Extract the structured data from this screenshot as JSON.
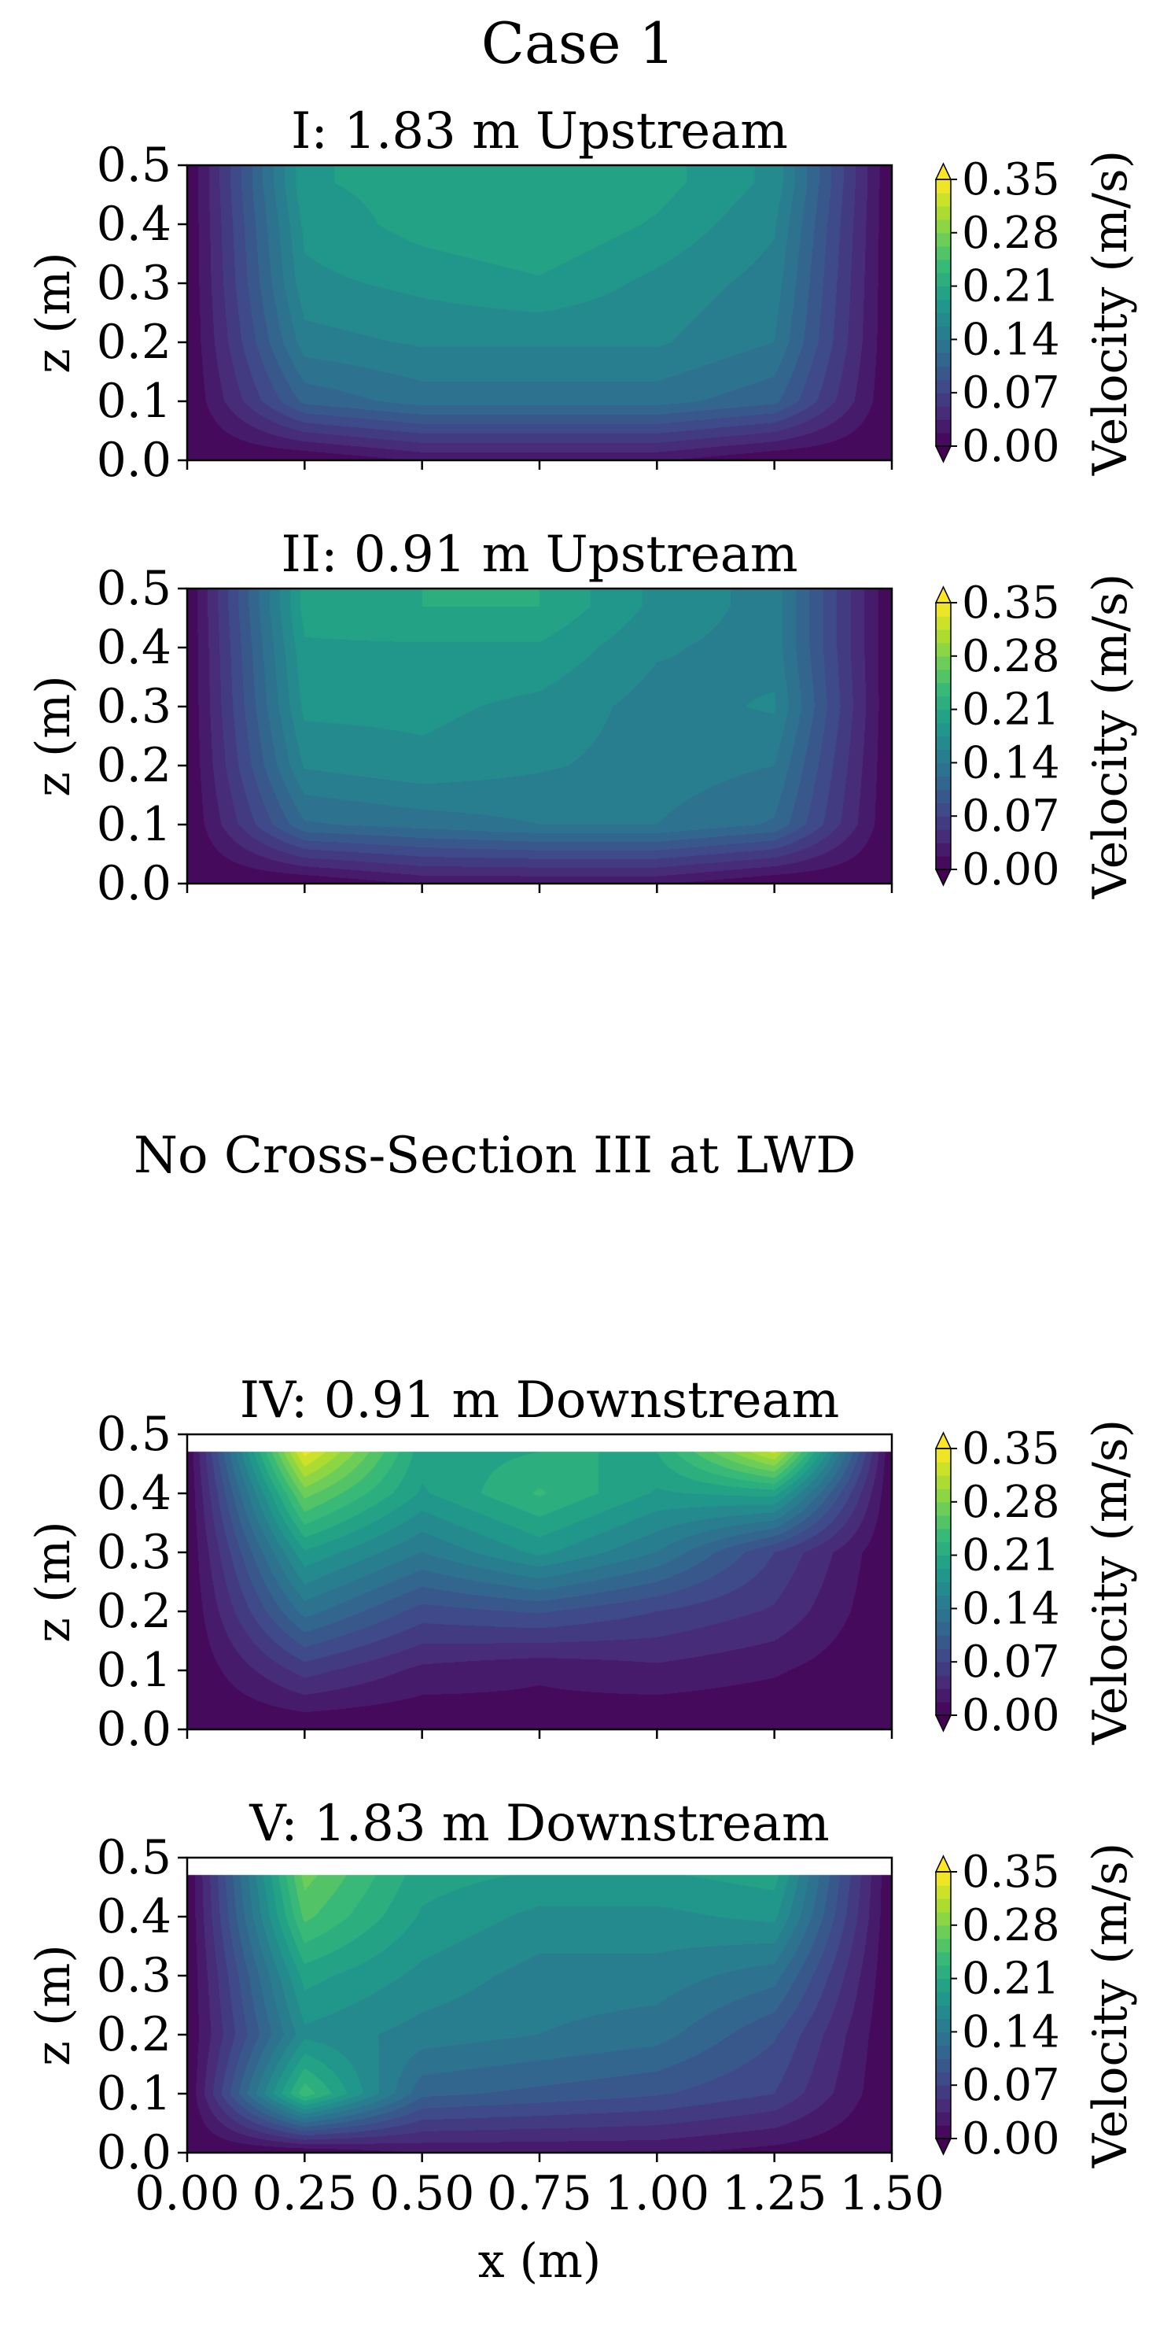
{
  "figure": {
    "title": "Case 1",
    "missing_note": "No Cross-Section III at LWD"
  },
  "colormap": {
    "name": "viridis",
    "stops": [
      "#440154",
      "#482878",
      "#3e4989",
      "#31688e",
      "#26828e",
      "#1f9e89",
      "#35b779",
      "#6ece58",
      "#b5de2b",
      "#fde725"
    ]
  },
  "chart_data": [
    {
      "type": "heatmap",
      "title": "I: 1.83 m Upstream",
      "xlabel": "",
      "ylabel": "z (m)",
      "xlim": [
        0.0,
        1.5
      ],
      "ylim": [
        0.0,
        0.5
      ],
      "x_ticks": [
        "0.00",
        "0.25",
        "0.50",
        "0.75",
        "1.00",
        "1.25",
        "1.50"
      ],
      "y_ticks": [
        "0.0",
        "0.1",
        "0.2",
        "0.3",
        "0.4",
        "0.5"
      ],
      "water_depth": 0.5,
      "colorbar": {
        "label": "Velocity (m/s)",
        "range": [
          0.0,
          0.35
        ],
        "ticks": [
          "0.00",
          "0.07",
          "0.14",
          "0.21",
          "0.28",
          "0.35"
        ],
        "extend": "both"
      },
      "grid": {
        "x": [
          0.0,
          0.25,
          0.5,
          0.75,
          1.0,
          1.25,
          1.5
        ],
        "z": [
          0.0,
          0.1,
          0.2,
          0.3,
          0.4,
          0.47
        ],
        "values": [
          [
            0.0,
            0.0,
            0.02,
            0.02,
            0.02,
            0.0,
            0.0
          ],
          [
            0.0,
            0.11,
            0.13,
            0.13,
            0.13,
            0.11,
            0.0
          ],
          [
            0.0,
            0.15,
            0.16,
            0.16,
            0.16,
            0.14,
            0.0
          ],
          [
            0.0,
            0.17,
            0.18,
            0.19,
            0.17,
            0.15,
            0.0
          ],
          [
            0.0,
            0.18,
            0.2,
            0.21,
            0.19,
            0.16,
            0.0
          ],
          [
            0.0,
            0.19,
            0.2,
            0.21,
            0.2,
            0.17,
            0.0
          ]
        ]
      }
    },
    {
      "type": "heatmap",
      "title": "II: 0.91 m Upstream",
      "xlabel": "",
      "ylabel": "z (m)",
      "xlim": [
        0.0,
        1.5
      ],
      "ylim": [
        0.0,
        0.5
      ],
      "x_ticks": [
        "0.00",
        "0.25",
        "0.50",
        "0.75",
        "1.00",
        "1.25",
        "1.50"
      ],
      "y_ticks": [
        "0.0",
        "0.1",
        "0.2",
        "0.3",
        "0.4",
        "0.5"
      ],
      "water_depth": 0.5,
      "colorbar": {
        "label": "Velocity (m/s)",
        "range": [
          0.0,
          0.35
        ],
        "ticks": [
          "0.00",
          "0.07",
          "0.14",
          "0.21",
          "0.28",
          "0.35"
        ],
        "extend": "both"
      },
      "grid": {
        "x": [
          0.0,
          0.25,
          0.5,
          0.75,
          1.0,
          1.25,
          1.5
        ],
        "z": [
          0.0,
          0.1,
          0.2,
          0.3,
          0.4,
          0.47
        ],
        "values": [
          [
            0.0,
            0.0,
            0.02,
            0.02,
            0.02,
            0.0,
            0.0
          ],
          [
            0.0,
            0.12,
            0.13,
            0.14,
            0.14,
            0.12,
            0.0
          ],
          [
            0.0,
            0.16,
            0.17,
            0.16,
            0.15,
            0.14,
            0.0
          ],
          [
            0.0,
            0.18,
            0.18,
            0.17,
            0.15,
            0.16,
            0.0
          ],
          [
            0.0,
            0.19,
            0.19,
            0.19,
            0.16,
            0.15,
            0.0
          ],
          [
            0.0,
            0.2,
            0.21,
            0.21,
            0.17,
            0.15,
            0.0
          ]
        ]
      }
    },
    {
      "type": "heatmap",
      "title": "IV: 0.91 m Downstream",
      "xlabel": "",
      "ylabel": "z (m)",
      "xlim": [
        0.0,
        1.5
      ],
      "ylim": [
        0.0,
        0.5
      ],
      "x_ticks": [
        "0.00",
        "0.25",
        "0.50",
        "0.75",
        "1.00",
        "1.25",
        "1.50"
      ],
      "y_ticks": [
        "0.0",
        "0.1",
        "0.2",
        "0.3",
        "0.4",
        "0.5"
      ],
      "water_depth": 0.47,
      "colorbar": {
        "label": "Velocity (m/s)",
        "range": [
          0.0,
          0.35
        ],
        "ticks": [
          "0.00",
          "0.07",
          "0.14",
          "0.21",
          "0.28",
          "0.35"
        ],
        "extend": "both"
      },
      "grid": {
        "x": [
          0.0,
          0.25,
          0.5,
          0.75,
          1.0,
          1.25,
          1.5
        ],
        "z": [
          0.0,
          0.1,
          0.2,
          0.3,
          0.4,
          0.47
        ],
        "values": [
          [
            0.0,
            0.0,
            0.0,
            0.01,
            0.0,
            0.0,
            0.0
          ],
          [
            0.0,
            0.06,
            0.03,
            0.02,
            0.03,
            0.02,
            0.0
          ],
          [
            0.0,
            0.13,
            0.08,
            0.09,
            0.07,
            0.05,
            0.0
          ],
          [
            0.0,
            0.19,
            0.14,
            0.18,
            0.14,
            0.07,
            0.0
          ],
          [
            0.0,
            0.27,
            0.19,
            0.23,
            0.19,
            0.2,
            0.0
          ],
          [
            0.0,
            0.34,
            0.2,
            0.21,
            0.21,
            0.32,
            0.0
          ]
        ]
      }
    },
    {
      "type": "heatmap",
      "title": "V: 1.83 m Downstream",
      "xlabel": "x (m)",
      "ylabel": "z (m)",
      "xlim": [
        0.0,
        1.5
      ],
      "ylim": [
        0.0,
        0.5
      ],
      "x_ticks": [
        "0.00",
        "0.25",
        "0.50",
        "0.75",
        "1.00",
        "1.25",
        "1.50"
      ],
      "y_ticks": [
        "0.0",
        "0.1",
        "0.2",
        "0.3",
        "0.4",
        "0.5"
      ],
      "water_depth": 0.47,
      "colorbar": {
        "label": "Velocity (m/s)",
        "range": [
          0.0,
          0.35
        ],
        "ticks": [
          "0.00",
          "0.07",
          "0.14",
          "0.21",
          "0.28",
          "0.35"
        ],
        "extend": "both"
      },
      "grid": {
        "x": [
          0.0,
          0.25,
          0.5,
          0.75,
          1.0,
          1.25,
          1.5
        ],
        "z": [
          0.0,
          0.1,
          0.2,
          0.3,
          0.4,
          0.47
        ],
        "values": [
          [
            0.0,
            0.0,
            0.02,
            0.02,
            0.02,
            0.01,
            0.0
          ],
          [
            0.0,
            0.24,
            0.11,
            0.1,
            0.09,
            0.07,
            0.0
          ],
          [
            0.0,
            0.17,
            0.15,
            0.14,
            0.13,
            0.09,
            0.0
          ],
          [
            0.0,
            0.2,
            0.17,
            0.15,
            0.15,
            0.13,
            0.0
          ],
          [
            0.0,
            0.25,
            0.19,
            0.17,
            0.17,
            0.18,
            0.0
          ],
          [
            0.0,
            0.27,
            0.2,
            0.19,
            0.19,
            0.2,
            0.0
          ]
        ]
      }
    }
  ]
}
